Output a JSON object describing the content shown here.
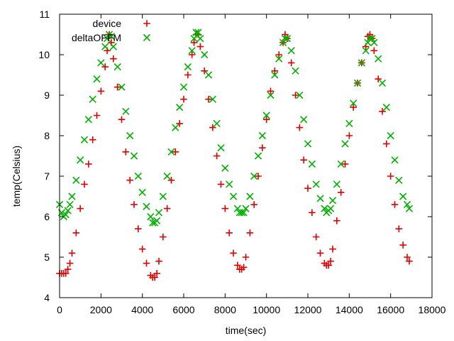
{
  "chart_data": {
    "type": "scatter",
    "xlabel": "time(sec)",
    "ylabel": "temp(Celsius)",
    "xlim": [
      0,
      18000
    ],
    "ylim": [
      4,
      11
    ],
    "x_ticks": [
      "0",
      "2000",
      "4000",
      "6000",
      "8000",
      "10000",
      "12000",
      "14000",
      "16000",
      "18000"
    ],
    "y_ticks": [
      "4",
      "5",
      "6",
      "7",
      "8",
      "9",
      "10",
      "11"
    ],
    "grid": false,
    "legend_position": "top-left",
    "series": [
      {
        "name": "device",
        "marker": "plus",
        "color": "#e00000",
        "points": [
          [
            0,
            4.6
          ],
          [
            100,
            4.6
          ],
          [
            200,
            4.6
          ],
          [
            300,
            4.6
          ],
          [
            400,
            4.7
          ],
          [
            500,
            4.85
          ],
          [
            600,
            5.1
          ],
          [
            800,
            5.6
          ],
          [
            1000,
            6.2
          ],
          [
            1200,
            6.8
          ],
          [
            1400,
            7.3
          ],
          [
            1600,
            7.9
          ],
          [
            1800,
            8.5
          ],
          [
            2000,
            9.1
          ],
          [
            2200,
            9.7
          ],
          [
            2300,
            10.1
          ],
          [
            2400,
            10.5
          ],
          [
            2500,
            10.3
          ],
          [
            2600,
            9.9
          ],
          [
            2800,
            9.2
          ],
          [
            3000,
            8.4
          ],
          [
            3200,
            7.6
          ],
          [
            3400,
            6.9
          ],
          [
            3600,
            6.3
          ],
          [
            3800,
            5.7
          ],
          [
            4000,
            5.2
          ],
          [
            4200,
            4.85
          ],
          [
            4400,
            4.55
          ],
          [
            4500,
            4.5
          ],
          [
            4600,
            4.5
          ],
          [
            4700,
            4.6
          ],
          [
            4800,
            4.9
          ],
          [
            5000,
            5.5
          ],
          [
            5200,
            6.2
          ],
          [
            5400,
            6.9
          ],
          [
            5600,
            7.6
          ],
          [
            5800,
            8.3
          ],
          [
            6000,
            8.9
          ],
          [
            6200,
            9.5
          ],
          [
            6400,
            10.0
          ],
          [
            6500,
            10.3
          ],
          [
            6600,
            10.5
          ],
          [
            6700,
            10.5
          ],
          [
            6800,
            10.2
          ],
          [
            7000,
            9.6
          ],
          [
            7200,
            8.9
          ],
          [
            7400,
            8.2
          ],
          [
            7600,
            7.5
          ],
          [
            7800,
            6.8
          ],
          [
            8000,
            6.2
          ],
          [
            8200,
            5.6
          ],
          [
            8400,
            5.1
          ],
          [
            8600,
            4.8
          ],
          [
            8700,
            4.7
          ],
          [
            8800,
            4.7
          ],
          [
            8900,
            4.75
          ],
          [
            9000,
            5.0
          ],
          [
            9200,
            5.6
          ],
          [
            9400,
            6.3
          ],
          [
            9600,
            7.0
          ],
          [
            9800,
            7.7
          ],
          [
            10000,
            8.4
          ],
          [
            10200,
            9.1
          ],
          [
            10400,
            9.6
          ],
          [
            10600,
            10.0
          ],
          [
            10800,
            10.3
          ],
          [
            10900,
            10.5
          ],
          [
            11000,
            10.4
          ],
          [
            11200,
            9.8
          ],
          [
            11400,
            9.0
          ],
          [
            11600,
            8.2
          ],
          [
            11800,
            7.4
          ],
          [
            12000,
            6.7
          ],
          [
            12200,
            6.1
          ],
          [
            12400,
            5.5
          ],
          [
            12600,
            5.1
          ],
          [
            12800,
            4.85
          ],
          [
            12900,
            4.8
          ],
          [
            13000,
            4.8
          ],
          [
            13100,
            4.9
          ],
          [
            13200,
            5.2
          ],
          [
            13400,
            5.9
          ],
          [
            13600,
            6.6
          ],
          [
            13800,
            7.3
          ],
          [
            14000,
            8.0
          ],
          [
            14200,
            8.7
          ],
          [
            14400,
            9.3
          ],
          [
            14600,
            9.8
          ],
          [
            14800,
            10.2
          ],
          [
            14900,
            10.45
          ],
          [
            15000,
            10.5
          ],
          [
            15100,
            10.4
          ],
          [
            15200,
            10.1
          ],
          [
            15400,
            9.4
          ],
          [
            15600,
            8.6
          ],
          [
            15800,
            7.8
          ],
          [
            16000,
            7.0
          ],
          [
            16200,
            6.3
          ],
          [
            16400,
            5.7
          ],
          [
            16600,
            5.3
          ],
          [
            16800,
            5.0
          ],
          [
            16900,
            4.9
          ]
        ]
      },
      {
        "name": "deltaOFFM",
        "marker": "x",
        "color": "#00b000",
        "points": [
          [
            0,
            6.3
          ],
          [
            100,
            6.1
          ],
          [
            200,
            6.0
          ],
          [
            300,
            6.05
          ],
          [
            400,
            6.15
          ],
          [
            500,
            6.3
          ],
          [
            600,
            6.5
          ],
          [
            800,
            6.9
          ],
          [
            1000,
            7.4
          ],
          [
            1200,
            7.9
          ],
          [
            1400,
            8.4
          ],
          [
            1600,
            8.9
          ],
          [
            1800,
            9.4
          ],
          [
            2000,
            9.8
          ],
          [
            2200,
            10.2
          ],
          [
            2300,
            10.4
          ],
          [
            2400,
            10.5
          ],
          [
            2500,
            10.45
          ],
          [
            2600,
            10.2
          ],
          [
            2800,
            9.7
          ],
          [
            3000,
            9.2
          ],
          [
            3200,
            8.6
          ],
          [
            3400,
            8.0
          ],
          [
            3600,
            7.5
          ],
          [
            3800,
            7.0
          ],
          [
            4000,
            6.6
          ],
          [
            4200,
            6.25
          ],
          [
            4400,
            6.0
          ],
          [
            4500,
            5.85
          ],
          [
            4600,
            5.85
          ],
          [
            4700,
            5.9
          ],
          [
            4800,
            6.1
          ],
          [
            5000,
            6.5
          ],
          [
            5200,
            7.0
          ],
          [
            5400,
            7.6
          ],
          [
            5600,
            8.2
          ],
          [
            5800,
            8.7
          ],
          [
            6000,
            9.2
          ],
          [
            6200,
            9.7
          ],
          [
            6400,
            10.1
          ],
          [
            6500,
            10.4
          ],
          [
            6600,
            10.55
          ],
          [
            6700,
            10.55
          ],
          [
            6800,
            10.4
          ],
          [
            7000,
            10.0
          ],
          [
            7200,
            9.5
          ],
          [
            7400,
            8.9
          ],
          [
            7600,
            8.3
          ],
          [
            7800,
            7.7
          ],
          [
            8000,
            7.2
          ],
          [
            8200,
            6.8
          ],
          [
            8400,
            6.5
          ],
          [
            8600,
            6.2
          ],
          [
            8700,
            6.1
          ],
          [
            8800,
            6.1
          ],
          [
            8900,
            6.1
          ],
          [
            9000,
            6.2
          ],
          [
            9200,
            6.5
          ],
          [
            9400,
            7.0
          ],
          [
            9600,
            7.5
          ],
          [
            9800,
            8.0
          ],
          [
            10000,
            8.5
          ],
          [
            10200,
            9.0
          ],
          [
            10400,
            9.5
          ],
          [
            10600,
            9.9
          ],
          [
            10800,
            10.3
          ],
          [
            10900,
            10.4
          ],
          [
            11000,
            10.4
          ],
          [
            11200,
            10.1
          ],
          [
            11400,
            9.6
          ],
          [
            11600,
            9.0
          ],
          [
            11800,
            8.4
          ],
          [
            12000,
            7.8
          ],
          [
            12200,
            7.3
          ],
          [
            12400,
            6.8
          ],
          [
            12600,
            6.45
          ],
          [
            12800,
            6.2
          ],
          [
            12900,
            6.1
          ],
          [
            13000,
            6.15
          ],
          [
            13100,
            6.2
          ],
          [
            13200,
            6.4
          ],
          [
            13400,
            6.8
          ],
          [
            13600,
            7.3
          ],
          [
            13800,
            7.8
          ],
          [
            14000,
            8.3
          ],
          [
            14200,
            8.8
          ],
          [
            14400,
            9.3
          ],
          [
            14600,
            9.8
          ],
          [
            14800,
            10.1
          ],
          [
            14900,
            10.3
          ],
          [
            15000,
            10.4
          ],
          [
            15100,
            10.4
          ],
          [
            15200,
            10.3
          ],
          [
            15400,
            9.9
          ],
          [
            15600,
            9.3
          ],
          [
            15800,
            8.7
          ],
          [
            16000,
            8.0
          ],
          [
            16200,
            7.4
          ],
          [
            16400,
            6.9
          ],
          [
            16600,
            6.5
          ],
          [
            16800,
            6.3
          ],
          [
            16900,
            6.2
          ]
        ]
      }
    ]
  }
}
